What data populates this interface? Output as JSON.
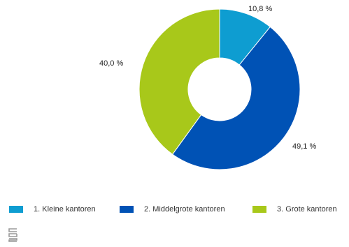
{
  "chart_data": {
    "type": "pie",
    "categories": [
      "1. Kleine kantoren",
      "2. Middelgrote kantoren",
      "3. Grote kantoren"
    ],
    "values": [
      10.8,
      49.1,
      40.0
    ],
    "data_labels": [
      "10,8 %",
      "49,1 %",
      "40,0 %"
    ],
    "colors": [
      "#0e9dd1",
      "#0052b5",
      "#a8c81a"
    ],
    "donut": true,
    "start_angle": "top, clockwise",
    "legend_position": "bottom"
  },
  "legend": {
    "items": [
      {
        "label": "1. Kleine kantoren",
        "color": "#0e9dd1"
      },
      {
        "label": "2. Middelgrote kantoren",
        "color": "#0052b5"
      },
      {
        "label": "3. Grote kantoren",
        "color": "#a8c81a"
      }
    ]
  },
  "logo": {
    "icon": "cbs-logo-icon"
  }
}
